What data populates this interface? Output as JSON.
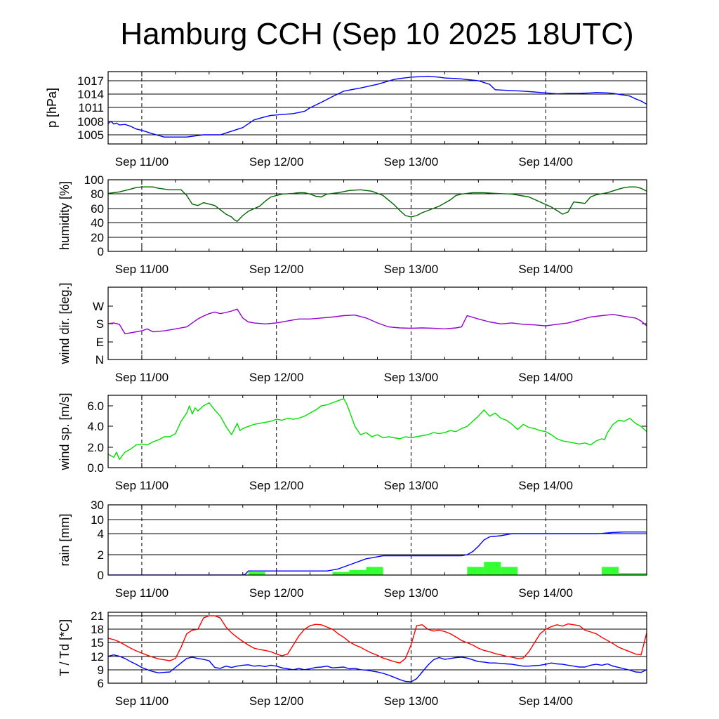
{
  "title": "Hamburg CCH (Sep 10 2025 18UTC)",
  "colors": {
    "pressure": "#0000ff",
    "humidity": "#006400",
    "wind_dir": "#9400d3",
    "wind_speed": "#00e000",
    "rain_line": "#0000ff",
    "rain_bars": "#33ff33",
    "temperature": "#ff0000",
    "dewpoint": "#0000ff"
  },
  "chart_data": [
    {
      "type": "line",
      "name": "pressure",
      "ylabel": "p [hPa]",
      "yticks": [
        "1005",
        "1008",
        "1011",
        "1014",
        "1017"
      ],
      "ylim": [
        1003,
        1019
      ],
      "x_tick_labels": [
        "Sep 11/00",
        "Sep 12/00",
        "Sep 13/00",
        "Sep 14/00"
      ],
      "x_range_hours": [
        0,
        96
      ],
      "x_hours": [
        0,
        0.5,
        1,
        1.5,
        2,
        3,
        4,
        5,
        6,
        8,
        10,
        14,
        17,
        20,
        21,
        24,
        26,
        28,
        29,
        31,
        33,
        35,
        36,
        38,
        40,
        42,
        45,
        48,
        51,
        52,
        54,
        57,
        59,
        60,
        62,
        63,
        66,
        68,
        69,
        72,
        74,
        76,
        78,
        80,
        82,
        84,
        86,
        87,
        89,
        90,
        91,
        93,
        94,
        95,
        96
      ],
      "series": [
        {
          "values": [
            1007.5,
            1008.0,
            1007.4,
            1007.6,
            1007.2,
            1007.3,
            1006.9,
            1006.3,
            1006.0,
            1005.2,
            1004.5,
            1004.5,
            1005.0,
            1005.0,
            1005.4,
            1006.6,
            1008.3,
            1009.0,
            1009.3,
            1009.5,
            1009.7,
            1010.2,
            1011.0,
            1012.2,
            1013.5,
            1014.7,
            1015.4,
            1016.2,
            1017.3,
            1017.5,
            1017.8,
            1018.0,
            1017.8,
            1017.6,
            1017.5,
            1017.4,
            1017.0,
            1016.2,
            1015.0,
            1014.8,
            1014.7,
            1014.5,
            1014.3,
            1014.1,
            1014.2,
            1014.2,
            1014.3,
            1014.4,
            1014.3,
            1014.2,
            1014.0,
            1013.6,
            1013.0,
            1012.5,
            1011.8
          ]
        }
      ]
    },
    {
      "type": "line",
      "name": "humidity",
      "ylabel": "humidity [%]",
      "yticks": [
        "0",
        "20",
        "40",
        "60",
        "80",
        "100"
      ],
      "ylim": [
        0,
        100
      ],
      "x_tick_labels": [
        "Sep 11/00",
        "Sep 12/00",
        "Sep 13/00",
        "Sep 14/00"
      ],
      "x_range_hours": [
        0,
        96
      ],
      "x_hours": [
        0,
        2,
        4,
        5,
        6,
        8,
        9,
        11,
        12,
        13,
        14,
        15,
        16,
        17,
        19,
        20,
        21,
        22,
        22.5,
        23,
        24,
        25,
        27,
        28,
        29,
        31,
        33,
        34,
        35,
        36,
        37,
        38,
        39,
        41,
        43,
        45,
        47,
        49,
        51,
        52,
        53,
        54,
        55,
        56,
        57,
        59,
        61,
        62,
        63,
        65,
        67,
        69,
        72,
        75,
        77,
        79,
        81,
        82,
        83,
        85,
        86,
        87,
        89,
        91,
        92,
        93,
        94,
        95,
        96
      ],
      "series": [
        {
          "values": [
            81,
            83,
            87,
            89,
            90,
            90,
            88,
            86,
            86,
            86,
            78,
            66,
            64,
            68,
            64,
            58,
            52,
            48,
            44,
            42,
            50,
            56,
            63,
            70,
            76,
            80,
            81,
            82,
            82,
            80,
            77,
            76,
            80,
            82,
            85,
            86,
            84,
            78,
            65,
            57,
            50,
            48,
            50,
            54,
            57,
            63,
            72,
            78,
            80,
            82,
            82,
            81,
            80,
            76,
            69,
            62,
            52,
            55,
            69,
            67,
            76,
            79,
            82,
            87,
            89,
            90,
            90,
            88,
            84
          ]
        },
        {
          "values": []
        }
      ]
    },
    {
      "type": "line",
      "name": "wind_direction",
      "ylabel": "wind dir. [deg.]",
      "yticks": [
        "N",
        "E",
        "S",
        "W"
      ],
      "ylim": [
        0,
        360
      ],
      "x_tick_labels": [
        "Sep 11/00",
        "Sep 12/00",
        "Sep 13/00",
        "Sep 14/00"
      ],
      "x_range_hours": [
        0,
        96
      ],
      "x_hours": [
        0,
        1,
        2,
        3,
        4,
        5,
        6,
        7,
        8,
        10,
        12,
        14,
        16,
        17,
        18,
        19,
        20,
        21,
        22,
        23,
        24,
        25,
        26,
        28,
        30,
        32,
        34,
        36,
        38,
        40,
        42,
        44,
        46,
        48,
        50,
        52,
        54,
        56,
        58,
        60,
        62,
        63,
        64,
        66,
        68,
        70,
        72,
        74,
        76,
        78,
        80,
        82,
        84,
        86,
        88,
        89,
        90,
        92,
        94,
        95,
        96
      ],
      "series": [
        {
          "values": [
            182,
            185,
            178,
            130,
            135,
            140,
            145,
            155,
            140,
            145,
            155,
            165,
            205,
            220,
            232,
            240,
            232,
            238,
            245,
            255,
            210,
            190,
            185,
            180,
            185,
            195,
            205,
            205,
            210,
            215,
            222,
            225,
            210,
            185,
            165,
            160,
            158,
            160,
            158,
            155,
            160,
            165,
            222,
            205,
            190,
            180,
            185,
            178,
            175,
            170,
            178,
            185,
            200,
            215,
            222,
            225,
            228,
            218,
            210,
            195,
            170
          ]
        }
      ]
    },
    {
      "type": "line",
      "name": "wind_speed",
      "ylabel": "wind sp. [m/s]",
      "yticks": [
        "0.0",
        "2.0",
        "4.0",
        "6.0"
      ],
      "ylim": [
        0,
        7
      ],
      "x_tick_labels": [
        "Sep 11/00",
        "Sep 12/00",
        "Sep 13/00",
        "Sep 14/00"
      ],
      "x_range_hours": [
        0,
        96
      ],
      "x_hours": [
        0,
        1,
        1.5,
        2,
        3,
        4,
        5,
        6,
        7,
        8,
        9,
        10,
        11,
        12,
        13,
        14,
        14.5,
        15,
        15.5,
        16,
        17,
        18,
        19,
        20,
        21,
        22,
        23,
        23.5,
        24,
        25,
        26,
        27,
        28,
        29,
        30,
        31,
        32,
        33,
        34,
        35,
        36,
        37,
        38,
        39,
        40,
        41,
        42,
        42.5,
        43,
        44,
        45,
        46,
        47,
        48,
        49,
        50,
        51,
        52,
        53,
        54,
        55,
        56,
        57,
        58,
        59,
        60,
        61,
        62,
        63,
        64,
        65,
        66,
        67,
        68,
        69,
        70,
        71,
        72,
        73,
        74,
        75,
        76,
        77,
        78,
        79,
        80,
        81,
        82,
        83,
        84,
        85,
        86,
        87,
        88,
        88.5,
        89,
        90,
        91,
        92,
        93,
        94,
        95,
        96
      ],
      "series": [
        {
          "values": [
            1.3,
            1.0,
            1.5,
            0.8,
            1.5,
            1.8,
            2.2,
            2.3,
            2.2,
            2.5,
            2.7,
            3.0,
            3.0,
            3.3,
            4.5,
            5.3,
            6.0,
            5.2,
            5.8,
            5.5,
            6.0,
            6.3,
            5.6,
            5.0,
            4.0,
            3.2,
            4.3,
            3.6,
            3.8,
            4.0,
            4.2,
            4.3,
            4.4,
            4.5,
            4.7,
            4.6,
            4.8,
            4.7,
            4.8,
            5.0,
            5.3,
            5.6,
            6.0,
            6.1,
            6.3,
            6.5,
            6.7,
            6.2,
            5.5,
            4.0,
            3.2,
            3.4,
            3.0,
            3.2,
            2.9,
            3.0,
            2.9,
            2.8,
            3.0,
            2.9,
            3.0,
            3.1,
            3.2,
            3.4,
            3.3,
            3.4,
            3.6,
            3.5,
            3.8,
            4.0,
            4.5,
            5.0,
            5.6,
            5.0,
            5.3,
            4.8,
            4.6,
            4.2,
            3.7,
            4.2,
            3.9,
            3.8,
            3.6,
            3.5,
            3.2,
            2.8,
            2.6,
            2.5,
            2.4,
            2.3,
            2.4,
            2.2,
            2.6,
            2.8,
            2.7,
            3.4,
            4.2,
            4.6,
            4.5,
            4.8,
            4.3,
            4.0,
            3.5
          ]
        }
      ]
    },
    {
      "type": "bar",
      "name": "rain",
      "ylabel": "rain [mm]",
      "yticks": [
        "0",
        "2",
        "4",
        "10",
        "30"
      ],
      "ylim": [
        0,
        30
      ],
      "x_tick_labels": [
        "Sep 11/00",
        "Sep 12/00",
        "Sep 13/00",
        "Sep 14/00"
      ],
      "x_range_hours": [
        0,
        96
      ],
      "bars_hours": [
        [
          25,
          28,
          0.3
        ],
        [
          40,
          43,
          0.3
        ],
        [
          43,
          46,
          0.5
        ],
        [
          46,
          49,
          0.8
        ],
        [
          64,
          67,
          0.8
        ],
        [
          67,
          70,
          1.3
        ],
        [
          70,
          73,
          0.8
        ],
        [
          88,
          91,
          0.8
        ],
        [
          91,
          96,
          0.2
        ]
      ],
      "line_hours": [
        0,
        24,
        24.5,
        25,
        36,
        39,
        40,
        41,
        42,
        43,
        44,
        45,
        46,
        47,
        48,
        49,
        50,
        60,
        63,
        64,
        65,
        66,
        67,
        68,
        70,
        72,
        80,
        87,
        88,
        89,
        90,
        91,
        92,
        93,
        94,
        95,
        96
      ],
      "series": [
        {
          "name": "accumulated",
          "values": [
            0,
            0,
            0.1,
            0.4,
            0.4,
            0.4,
            0.5,
            0.6,
            0.8,
            1.0,
            1.2,
            1.4,
            1.6,
            1.7,
            1.8,
            1.9,
            1.9,
            1.9,
            1.9,
            2.0,
            2.3,
            2.8,
            3.4,
            3.7,
            3.8,
            4.0,
            4.0,
            4.0,
            4.1,
            4.3,
            4.5,
            4.6,
            4.7,
            4.7,
            4.7,
            4.7,
            4.7
          ]
        }
      ]
    },
    {
      "type": "line",
      "name": "temperature",
      "ylabel": "T / Td [*C]",
      "yticks": [
        "6",
        "9",
        "12",
        "15",
        "18",
        "21"
      ],
      "ylim": [
        5.5,
        21.5
      ],
      "x_tick_labels": [
        "Sep 11/00",
        "Sep 12/00",
        "Sep 13/00",
        "Sep 14/00"
      ],
      "x_range_hours": [
        0,
        96
      ],
      "x_hours": [
        0,
        1,
        2,
        3,
        4,
        5,
        6,
        7,
        8,
        9,
        10,
        11,
        12,
        13,
        14,
        15,
        16,
        17,
        18,
        19,
        20,
        21,
        22,
        23,
        24,
        25,
        26,
        27,
        28,
        29,
        30,
        31,
        32,
        33,
        34,
        35,
        36,
        37,
        38,
        39,
        40,
        41,
        42,
        43,
        44,
        45,
        46,
        47,
        48,
        49,
        50,
        51,
        52,
        53,
        54,
        55,
        56,
        57,
        58,
        59,
        60,
        61,
        62,
        63,
        64,
        65,
        66,
        67,
        68,
        69,
        70,
        71,
        72,
        73,
        74,
        75,
        76,
        77,
        78,
        79,
        80,
        81,
        82,
        83,
        84,
        85,
        86,
        87,
        88,
        89,
        90,
        91,
        92,
        93,
        94,
        95,
        96
      ],
      "series": [
        {
          "name": "T",
          "values": [
            16.0,
            15.7,
            15.2,
            14.5,
            13.8,
            13.2,
            12.7,
            12.2,
            11.8,
            11.4,
            11.2,
            11.0,
            11.5,
            14.0,
            17.0,
            17.8,
            18.0,
            20.5,
            21.0,
            21.0,
            20.5,
            18.5,
            17.2,
            16.2,
            15.3,
            14.5,
            13.8,
            13.5,
            13.3,
            13.0,
            12.5,
            12.1,
            12.5,
            14.5,
            16.5,
            18.0,
            18.8,
            19.1,
            19.0,
            18.5,
            18.0,
            17.0,
            16.2,
            15.2,
            14.5,
            14.0,
            13.3,
            12.7,
            12.2,
            11.6,
            11.2,
            10.8,
            10.5,
            11.5,
            14.5,
            18.8,
            19.0,
            18.0,
            17.6,
            17.8,
            17.5,
            17.0,
            16.3,
            15.5,
            15.0,
            14.5,
            13.8,
            13.3,
            13.0,
            12.6,
            12.3,
            12.0,
            11.8,
            11.5,
            11.6,
            13.0,
            15.0,
            17.0,
            18.0,
            18.6,
            19.0,
            18.7,
            19.2,
            19.0,
            18.8,
            17.8,
            17.4,
            17.0,
            16.2,
            15.5,
            14.8,
            14.0,
            13.5,
            13.0,
            12.5,
            12.3,
            17.2
          ]
        },
        {
          "name": "Td",
          "values": [
            12.0,
            12.3,
            12.0,
            11.5,
            10.8,
            10.2,
            9.5,
            9.0,
            8.6,
            8.3,
            8.4,
            8.5,
            9.5,
            10.5,
            11.5,
            11.8,
            11.5,
            11.3,
            11.0,
            9.5,
            9.3,
            9.8,
            9.5,
            9.8,
            10.0,
            10.1,
            9.8,
            9.9,
            9.7,
            10.0,
            9.8,
            9.4,
            9.2,
            9.0,
            9.3,
            9.0,
            9.2,
            9.5,
            9.6,
            9.8,
            9.4,
            9.5,
            9.6,
            9.2,
            9.3,
            9.0,
            8.9,
            8.7,
            8.5,
            8.2,
            7.8,
            7.3,
            6.8,
            6.4,
            6.3,
            7.0,
            8.5,
            10.0,
            11.2,
            11.7,
            11.3,
            11.5,
            11.7,
            11.8,
            11.6,
            11.2,
            10.8,
            10.7,
            10.5,
            10.5,
            10.4,
            10.3,
            10.2,
            10.0,
            9.8,
            9.8,
            9.9,
            10.0,
            10.2,
            10.5,
            10.3,
            10.2,
            10.0,
            9.8,
            9.6,
            9.6,
            10.0,
            10.2,
            10.0,
            10.3,
            9.8,
            9.5,
            9.2,
            8.9,
            8.5,
            8.4,
            9.0
          ]
        }
      ]
    }
  ]
}
